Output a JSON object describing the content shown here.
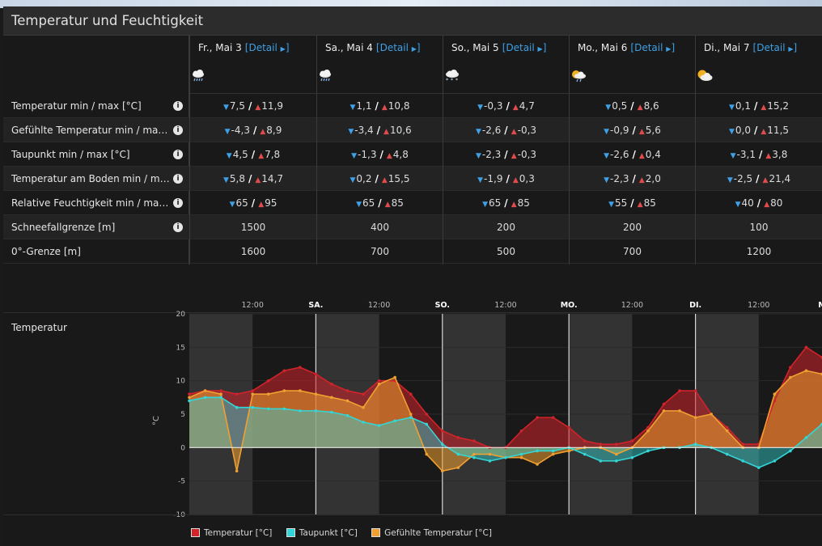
{
  "title": "Temperatur und Feuchtigkeit",
  "days": [
    {
      "date": "Fr., Mai 3",
      "detail": "[Detail",
      "icon": "rain-icon"
    },
    {
      "date": "Sa., Mai 4",
      "detail": "[Detail",
      "icon": "rain-icon"
    },
    {
      "date": "So., Mai 5",
      "detail": "[Detail",
      "icon": "snow-rain-icon"
    },
    {
      "date": "Mo., Mai 6",
      "detail": "[Detail",
      "icon": "sun-cloud-rain-icon"
    },
    {
      "date": "Di., Mai 7",
      "detail": "[Detail",
      "icon": "sun-cloud-icon"
    }
  ],
  "rows": [
    {
      "label": "Temperatur min / max [°C]",
      "info": true,
      "values": [
        [
          "7,5",
          "11,9"
        ],
        [
          "1,1",
          "10,8"
        ],
        [
          "-0,3",
          "4,7"
        ],
        [
          "0,5",
          "8,6"
        ],
        [
          "0,1",
          "15,2"
        ]
      ]
    },
    {
      "label": "Gefühlte Temperatur min / max [°C]",
      "info": true,
      "values": [
        [
          "-4,3",
          "8,9"
        ],
        [
          "-3,4",
          "10,6"
        ],
        [
          "-2,6",
          "-0,3"
        ],
        [
          "-0,9",
          "5,6"
        ],
        [
          "0,0",
          "11,5"
        ]
      ]
    },
    {
      "label": "Taupunkt min / max [°C]",
      "info": true,
      "values": [
        [
          "4,5",
          "7,8"
        ],
        [
          "-1,3",
          "4,8"
        ],
        [
          "-2,3",
          "-0,3"
        ],
        [
          "-2,6",
          "0,4"
        ],
        [
          "-3,1",
          "3,8"
        ]
      ]
    },
    {
      "label": "Temperatur am Boden min / max [°C]",
      "info": true,
      "values": [
        [
          "5,8",
          "14,7"
        ],
        [
          "0,2",
          "15,5"
        ],
        [
          "-1,9",
          "0,3"
        ],
        [
          "-2,3",
          "2,0"
        ],
        [
          "-2,5",
          "21,4"
        ]
      ]
    },
    {
      "label": "Relative Feuchtigkeit min / max [%]",
      "info": true,
      "values": [
        [
          "65",
          "95"
        ],
        [
          "65",
          "85"
        ],
        [
          "65",
          "85"
        ],
        [
          "55",
          "85"
        ],
        [
          "40",
          "80"
        ]
      ]
    },
    {
      "label": "Schneefallgrenze [m]",
      "info": true,
      "single": [
        "1500",
        "400",
        "200",
        "200",
        "100"
      ]
    },
    {
      "label": "0°-Grenze [m]",
      "info": false,
      "single": [
        "1600",
        "700",
        "500",
        "700",
        "1200"
      ]
    }
  ],
  "chart": {
    "label": "Temperatur",
    "ylabel": "°C",
    "yticks": [
      "20",
      "15",
      "10",
      "5",
      "0",
      "-5",
      "-10"
    ],
    "xticks": [
      "12:00",
      "SA.",
      "12:00",
      "SO.",
      "12:00",
      "MO.",
      "12:00",
      "DI.",
      "12:00",
      "M"
    ],
    "legend": [
      "Temperatur [°C]",
      "Taupunkt [°C]",
      "Gefühlte Temperatur [°C]"
    ],
    "colors": {
      "temp": "#d0232a",
      "dew": "#33d6d6",
      "feel": "#f0a030"
    }
  },
  "chart_data": {
    "type": "line",
    "title": "Temperatur",
    "ylabel": "°C",
    "ylim": [
      -10,
      20
    ],
    "x_hours": [
      0,
      3,
      6,
      9,
      12,
      15,
      18,
      21,
      24,
      27,
      30,
      33,
      36,
      39,
      42,
      45,
      48,
      51,
      54,
      57,
      60,
      63,
      66,
      69,
      72,
      75,
      78,
      81,
      84,
      87,
      90,
      93,
      96,
      99,
      102,
      105,
      108,
      111,
      114,
      117,
      120
    ],
    "series": [
      {
        "name": "Temperatur [°C]",
        "values": [
          8.0,
          8.5,
          8.5,
          8.0,
          8.5,
          10.0,
          11.5,
          12.0,
          11.0,
          9.5,
          8.5,
          8.0,
          10.0,
          10.0,
          8.0,
          5.0,
          2.5,
          1.5,
          1.0,
          0.0,
          0.0,
          2.5,
          4.5,
          4.5,
          3.0,
          1.0,
          0.5,
          0.5,
          1.0,
          3.0,
          6.5,
          8.5,
          8.5,
          5.0,
          3.0,
          0.5,
          0.5,
          7.0,
          12.0,
          15.0,
          13.5
        ]
      },
      {
        "name": "Taupunkt [°C]",
        "values": [
          7.0,
          7.5,
          7.5,
          6.0,
          6.0,
          5.8,
          5.8,
          5.5,
          5.5,
          5.3,
          4.8,
          3.8,
          3.3,
          4.0,
          4.5,
          3.5,
          0.5,
          -1.0,
          -1.5,
          -2.0,
          -1.5,
          -1.0,
          -0.5,
          -0.5,
          0.0,
          -1.0,
          -2.0,
          -2.0,
          -1.5,
          -0.5,
          0.0,
          0.0,
          0.5,
          0.0,
          -1.0,
          -2.0,
          -3.0,
          -2.0,
          -0.5,
          1.5,
          3.5
        ]
      },
      {
        "name": "Gefühlte Temperatur [°C]",
        "values": [
          7.5,
          8.5,
          8.0,
          -3.5,
          8.0,
          8.0,
          8.5,
          8.5,
          8.0,
          7.5,
          7.0,
          6.0,
          9.5,
          10.5,
          5.0,
          -1.0,
          -3.5,
          -3.0,
          -1.0,
          -1.0,
          -1.5,
          -1.5,
          -2.5,
          -1.0,
          -0.5,
          0.0,
          0.0,
          -1.0,
          0.0,
          2.5,
          5.5,
          5.5,
          4.5,
          5.0,
          2.5,
          0.0,
          0.0,
          8.0,
          10.5,
          11.5,
          11.0
        ]
      }
    ]
  }
}
